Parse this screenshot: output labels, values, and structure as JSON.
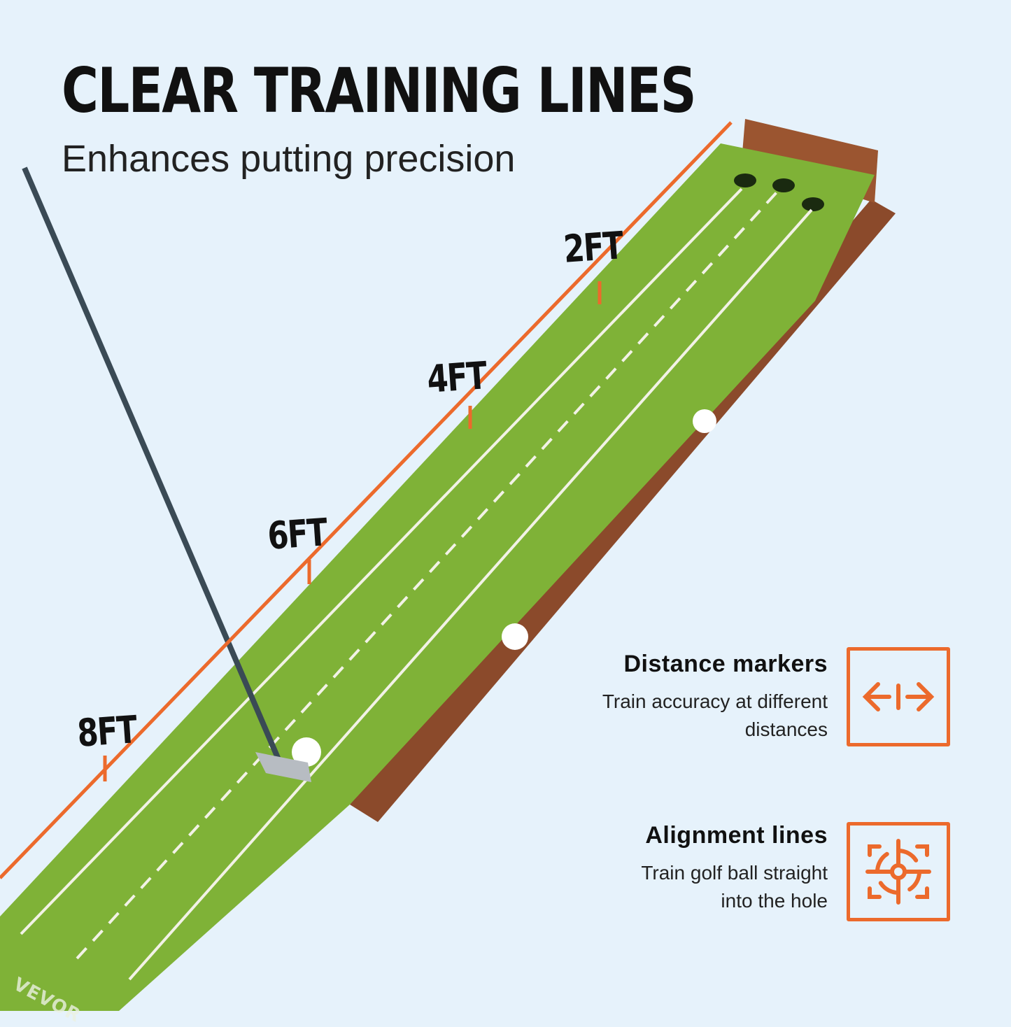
{
  "header": {
    "title": "CLEAR TRAINING LINES",
    "subtitle": "Enhances putting precision"
  },
  "distance_labels": [
    "2FT",
    "4FT",
    "6FT",
    "8FT"
  ],
  "mat_numbers": [
    "2",
    "4",
    "6",
    "8"
  ],
  "brand_mark": "VEVOR",
  "features": [
    {
      "title": "Distance markers",
      "description_line1": "Train accuracy at different",
      "description_line2": "distances",
      "icon": "distance-arrows-icon"
    },
    {
      "title": "Alignment lines",
      "description_line1": "Train golf ball straight",
      "description_line2": "into the hole",
      "icon": "target-crosshair-icon"
    }
  ],
  "colors": {
    "accent": "#ec6a2c",
    "background": "#e6f2fb",
    "grass": "#7fb237",
    "wood": "#8b4a2b"
  }
}
